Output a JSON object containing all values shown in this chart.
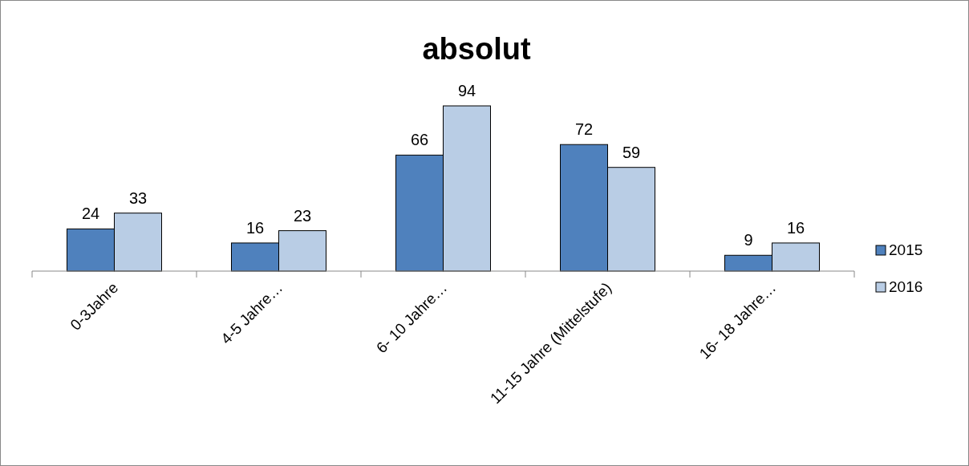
{
  "chart_data": {
    "type": "bar",
    "title": "absolut",
    "categories": [
      "0-3Jahre",
      "4-5 Jahre…",
      "6- 10 Jahre…",
      "11-15 Jahre (Mittelstufe)",
      "16- 18 Jahre…"
    ],
    "series": [
      {
        "name": "2015",
        "color": "#4f81bd",
        "values": [
          24,
          16,
          66,
          72,
          9
        ]
      },
      {
        "name": "2016",
        "color": "#b9cde5",
        "values": [
          33,
          23,
          94,
          59,
          16
        ]
      }
    ],
    "data_labels": true,
    "legend": "right"
  }
}
